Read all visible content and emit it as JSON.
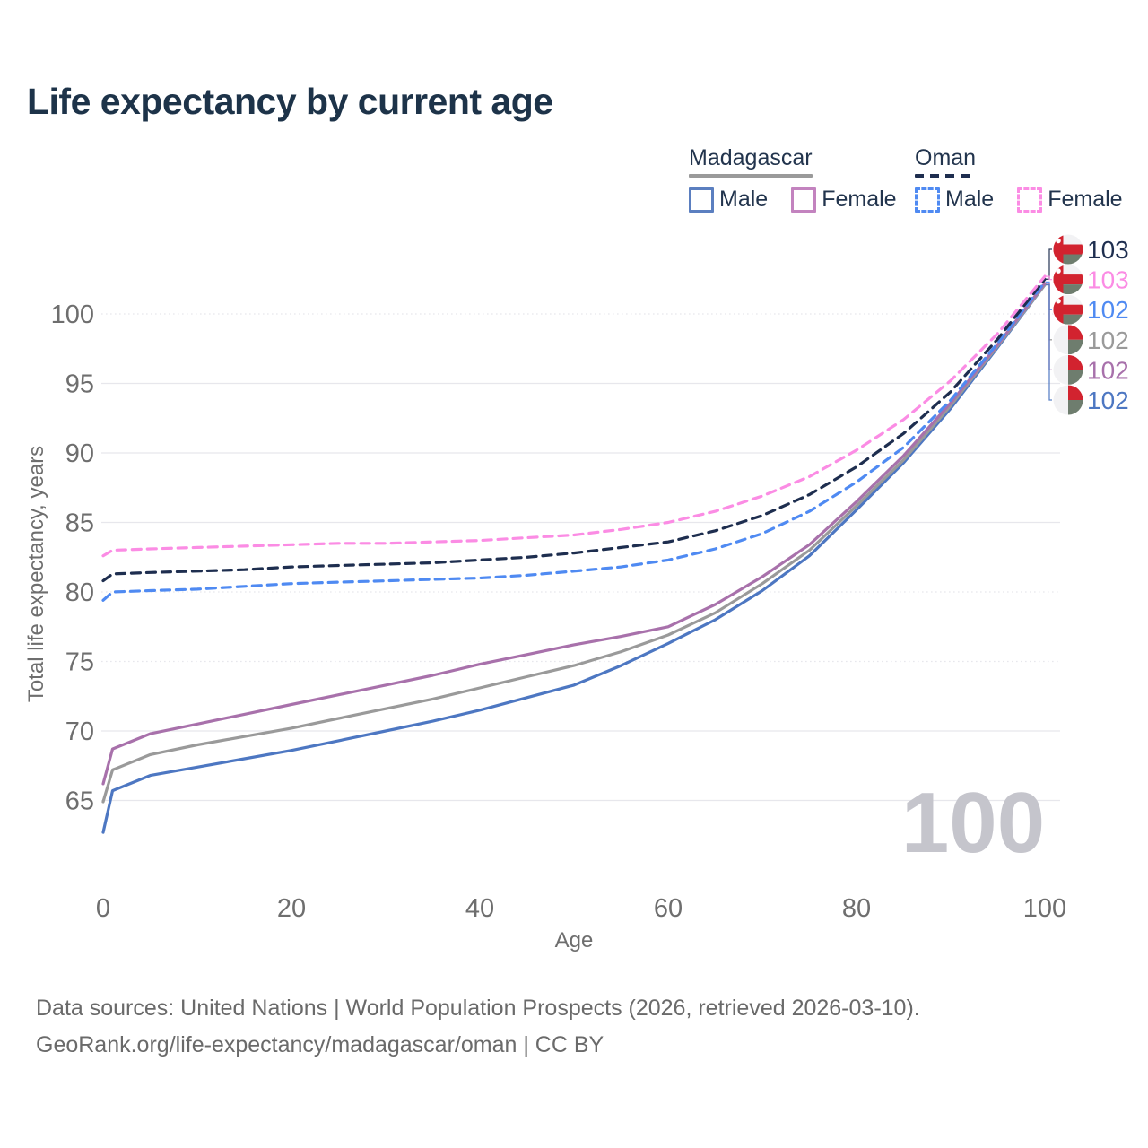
{
  "title": "Life expectancy by current age",
  "watermark": "100",
  "legend": {
    "groups": [
      {
        "name": "Madagascar",
        "style": "solid",
        "underline_color": "#9a9a9a",
        "items": [
          {
            "label": "Male",
            "color": "#5b7fc0"
          },
          {
            "label": "Female",
            "color": "#c383bf"
          }
        ]
      },
      {
        "name": "Oman",
        "style": "dashed",
        "underline_color": "#1e2e4f",
        "items": [
          {
            "label": "Male",
            "color": "#4f8af2"
          },
          {
            "label": "Female",
            "color": "#fb8ce4"
          }
        ]
      }
    ]
  },
  "footer": {
    "line1": "Data sources: United Nations | World Population Prospects (2026, retrieved 2026-03-10).",
    "line2": "GeoRank.org/life-expectancy/madagascar/oman | CC BY"
  },
  "colors": {
    "title_text": "#1d3349",
    "axis_text": "#6e6e6e",
    "gridline": "#e7e7ec",
    "watermark": "#c5c5cc",
    "flag_red": "#d2232f",
    "flag_green": "#6e7d6e",
    "flag_white": "#f2f2f4"
  },
  "chart_data": {
    "type": "line",
    "title": "Life expectancy by current age",
    "xlabel": "Age",
    "ylabel": "Total life expectancy, years",
    "xticks": [
      0,
      20,
      40,
      60,
      80,
      100
    ],
    "yticks": [
      65,
      70,
      75,
      80,
      85,
      90,
      95,
      100
    ],
    "dotted_gridlines": [
      100,
      80,
      75
    ],
    "xlim": [
      0,
      100
    ],
    "ylim": [
      62,
      104
    ],
    "legend_position": "top-right",
    "x": [
      0,
      1,
      5,
      10,
      15,
      20,
      25,
      30,
      35,
      40,
      45,
      50,
      55,
      60,
      65,
      70,
      75,
      80,
      85,
      90,
      95,
      100
    ],
    "series": [
      {
        "name": "Madagascar Male",
        "country": "Madagascar",
        "sex": "Male",
        "color": "#4d77c2",
        "dash": false,
        "values": [
          62.7,
          65.7,
          66.8,
          67.4,
          68.0,
          68.6,
          69.3,
          70.0,
          70.7,
          71.5,
          72.4,
          73.3,
          74.7,
          76.3,
          78.0,
          80.1,
          82.6,
          85.9,
          89.3,
          93.2,
          97.6,
          102.1
        ]
      },
      {
        "name": "Madagascar Total",
        "country": "Madagascar",
        "sex": "Both",
        "color": "#9a9a9a",
        "dash": false,
        "values": [
          64.9,
          67.2,
          68.3,
          69.0,
          69.6,
          70.2,
          70.9,
          71.6,
          72.3,
          73.1,
          73.9,
          74.7,
          75.7,
          76.9,
          78.5,
          80.6,
          83.0,
          86.2,
          89.5,
          93.4,
          97.7,
          102.1
        ]
      },
      {
        "name": "Madagascar Female",
        "country": "Madagascar",
        "sex": "Female",
        "color": "#a871ab",
        "dash": false,
        "values": [
          66.2,
          68.7,
          69.8,
          70.5,
          71.2,
          71.9,
          72.6,
          73.3,
          74.0,
          74.8,
          75.5,
          76.2,
          76.8,
          77.5,
          79.1,
          81.1,
          83.4,
          86.5,
          89.8,
          93.6,
          97.8,
          102.2
        ]
      },
      {
        "name": "Oman Male",
        "country": "Oman",
        "sex": "Male",
        "color": "#4f8af2",
        "dash": true,
        "values": [
          79.4,
          80.0,
          80.1,
          80.2,
          80.4,
          80.6,
          80.7,
          80.8,
          80.9,
          81.0,
          81.2,
          81.5,
          81.8,
          82.3,
          83.1,
          84.2,
          85.8,
          87.9,
          90.4,
          93.8,
          97.9,
          102.3
        ]
      },
      {
        "name": "Oman Total",
        "country": "Oman",
        "sex": "Both",
        "color": "#1e2e4f",
        "dash": true,
        "values": [
          80.8,
          81.3,
          81.4,
          81.5,
          81.6,
          81.8,
          81.9,
          82.0,
          82.1,
          82.3,
          82.5,
          82.8,
          83.2,
          83.6,
          84.4,
          85.5,
          87.0,
          89.0,
          91.4,
          94.4,
          98.2,
          102.5
        ]
      },
      {
        "name": "Oman Female",
        "country": "Oman",
        "sex": "Female",
        "color": "#fb8ce4",
        "dash": true,
        "values": [
          82.6,
          83.0,
          83.1,
          83.2,
          83.3,
          83.4,
          83.5,
          83.5,
          83.6,
          83.7,
          83.9,
          84.1,
          84.5,
          85.0,
          85.8,
          86.9,
          88.3,
          90.2,
          92.4,
          95.2,
          98.6,
          102.7
        ]
      }
    ],
    "end_labels": [
      {
        "series": "Oman Total",
        "value": "103",
        "color": "#1e2e4f",
        "flag": "oman"
      },
      {
        "series": "Oman Female",
        "value": "103",
        "color": "#fb8ce4",
        "flag": "oman"
      },
      {
        "series": "Oman Male",
        "value": "102",
        "color": "#4f8af2",
        "flag": "oman"
      },
      {
        "series": "Madagascar Total",
        "value": "102",
        "color": "#9a9a9a",
        "flag": "madagascar"
      },
      {
        "series": "Madagascar Female",
        "value": "102",
        "color": "#a871ab",
        "flag": "madagascar"
      },
      {
        "series": "Madagascar Male",
        "value": "102",
        "color": "#4d77c2",
        "flag": "madagascar"
      }
    ]
  }
}
